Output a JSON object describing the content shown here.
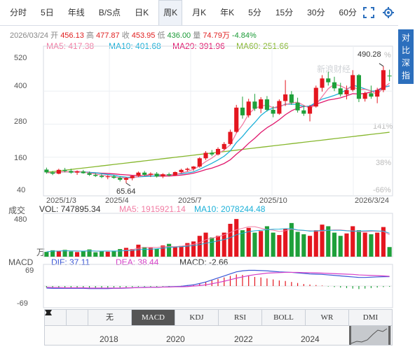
{
  "tabs": [
    {
      "label": "分时",
      "active": false
    },
    {
      "label": "5日",
      "active": false
    },
    {
      "label": "年线",
      "active": false
    },
    {
      "label": "B/S点",
      "active": false
    },
    {
      "label": "日K",
      "active": false
    },
    {
      "label": "周K",
      "active": true
    },
    {
      "label": "月K",
      "active": false
    },
    {
      "label": "年K",
      "active": false
    },
    {
      "label": "5分",
      "active": false
    },
    {
      "label": "15分",
      "active": false
    },
    {
      "label": "30分",
      "active": false
    },
    {
      "label": "60分",
      "active": false
    }
  ],
  "side_button": "对比深指",
  "info": {
    "date": "2026/03/24",
    "open_label": "开",
    "open": "456.13",
    "high_label": "高",
    "high": "477.87",
    "close_label": "收",
    "close": "453.95",
    "low_label": "低",
    "low": "436.00",
    "vol_label": "量",
    "vol": "74.79万",
    "chg": "-4.84%"
  },
  "ma": {
    "ma5": "MA5: 417.38",
    "ma10": "MA10: 401.68",
    "ma20": "MA20: 391.96",
    "ma60": "MA60: 251.66"
  },
  "price_axis": [
    "520",
    "400",
    "280",
    "160",
    "40"
  ],
  "pct_axis": [
    "141%",
    "38%",
    "-66%"
  ],
  "pct_top": "%",
  "annotations": {
    "max": "490.28",
    "min": "65.64"
  },
  "dates": [
    "2025/1/3",
    "2025/4",
    "2025/7",
    "2025/10",
    "2026/3/24"
  ],
  "volume": {
    "label": "成交",
    "vol": "VOL: 747895.34",
    "ma5": "MA5: 1915921.14",
    "ma10": "MA10: 2078244.48",
    "axis_top": "480",
    "unit": "万"
  },
  "macd": {
    "label": "MACD",
    "dif": "DIF: 37.11",
    "dea": "DEA: 38.44",
    "macd": "MACD: -2.66",
    "axis_top": "69",
    "axis_bottom": "-69"
  },
  "indicator_tabs": [
    "无",
    "MACD",
    "KDJ",
    "RSI",
    "BOLL",
    "WR",
    "DMI"
  ],
  "active_indicator": "MACD",
  "years": [
    "2018",
    "2020",
    "2022",
    "2024"
  ],
  "watermark": "新浪财经",
  "colors": {
    "up": "#e4161f",
    "down": "#1ea03a",
    "ma5": "#f17ca3",
    "ma10": "#1bb0d8",
    "ma20": "#e0186d",
    "ma60": "#86b72d",
    "dif": "#3b57d6",
    "dea": "#d640c8"
  },
  "chart_data": {
    "type": "candlestick",
    "ylim": [
      40,
      520
    ],
    "candles": [
      {
        "o": 115,
        "h": 122,
        "l": 100,
        "c": 105
      },
      {
        "o": 105,
        "h": 110,
        "l": 95,
        "c": 100
      },
      {
        "o": 100,
        "h": 118,
        "l": 98,
        "c": 114
      },
      {
        "o": 114,
        "h": 121,
        "l": 105,
        "c": 110
      },
      {
        "o": 110,
        "h": 118,
        "l": 100,
        "c": 104
      },
      {
        "o": 104,
        "h": 112,
        "l": 96,
        "c": 108
      },
      {
        "o": 108,
        "h": 114,
        "l": 100,
        "c": 102
      },
      {
        "o": 102,
        "h": 108,
        "l": 92,
        "c": 96
      },
      {
        "o": 96,
        "h": 102,
        "l": 88,
        "c": 92
      },
      {
        "o": 92,
        "h": 98,
        "l": 84,
        "c": 88
      },
      {
        "o": 88,
        "h": 95,
        "l": 80,
        "c": 90
      },
      {
        "o": 90,
        "h": 96,
        "l": 82,
        "c": 85
      },
      {
        "o": 85,
        "h": 90,
        "l": 72,
        "c": 78
      },
      {
        "o": 78,
        "h": 88,
        "l": 66,
        "c": 84
      },
      {
        "o": 84,
        "h": 94,
        "l": 76,
        "c": 92
      },
      {
        "o": 92,
        "h": 108,
        "l": 88,
        "c": 104
      },
      {
        "o": 104,
        "h": 110,
        "l": 92,
        "c": 96
      },
      {
        "o": 96,
        "h": 105,
        "l": 88,
        "c": 100
      },
      {
        "o": 100,
        "h": 106,
        "l": 86,
        "c": 90
      },
      {
        "o": 90,
        "h": 102,
        "l": 84,
        "c": 98
      },
      {
        "o": 98,
        "h": 104,
        "l": 90,
        "c": 94
      },
      {
        "o": 94,
        "h": 108,
        "l": 92,
        "c": 106
      },
      {
        "o": 106,
        "h": 118,
        "l": 102,
        "c": 114
      },
      {
        "o": 114,
        "h": 122,
        "l": 108,
        "c": 118
      },
      {
        "o": 118,
        "h": 128,
        "l": 110,
        "c": 126
      },
      {
        "o": 126,
        "h": 160,
        "l": 122,
        "c": 156
      },
      {
        "o": 156,
        "h": 182,
        "l": 150,
        "c": 176
      },
      {
        "o": 176,
        "h": 186,
        "l": 164,
        "c": 170
      },
      {
        "o": 170,
        "h": 196,
        "l": 166,
        "c": 190
      },
      {
        "o": 190,
        "h": 215,
        "l": 184,
        "c": 208
      },
      {
        "o": 208,
        "h": 260,
        "l": 204,
        "c": 252
      },
      {
        "o": 252,
        "h": 350,
        "l": 248,
        "c": 340
      },
      {
        "o": 340,
        "h": 380,
        "l": 300,
        "c": 312
      },
      {
        "o": 312,
        "h": 372,
        "l": 304,
        "c": 362
      },
      {
        "o": 362,
        "h": 390,
        "l": 328,
        "c": 336
      },
      {
        "o": 336,
        "h": 378,
        "l": 320,
        "c": 370
      },
      {
        "o": 370,
        "h": 382,
        "l": 326,
        "c": 332
      },
      {
        "o": 332,
        "h": 345,
        "l": 305,
        "c": 318
      },
      {
        "o": 318,
        "h": 370,
        "l": 314,
        "c": 364
      },
      {
        "o": 364,
        "h": 440,
        "l": 346,
        "c": 388
      },
      {
        "o": 388,
        "h": 400,
        "l": 350,
        "c": 358
      },
      {
        "o": 358,
        "h": 376,
        "l": 322,
        "c": 330
      },
      {
        "o": 330,
        "h": 348,
        "l": 310,
        "c": 318
      },
      {
        "o": 318,
        "h": 350,
        "l": 290,
        "c": 344
      },
      {
        "o": 344,
        "h": 420,
        "l": 340,
        "c": 412
      },
      {
        "o": 412,
        "h": 458,
        "l": 398,
        "c": 446
      },
      {
        "o": 446,
        "h": 470,
        "l": 420,
        "c": 432
      },
      {
        "o": 432,
        "h": 452,
        "l": 400,
        "c": 410
      },
      {
        "o": 410,
        "h": 430,
        "l": 380,
        "c": 388
      },
      {
        "o": 388,
        "h": 420,
        "l": 370,
        "c": 404
      },
      {
        "o": 404,
        "h": 476,
        "l": 398,
        "c": 458
      },
      {
        "o": 458,
        "h": 462,
        "l": 360,
        "c": 372
      },
      {
        "o": 372,
        "h": 398,
        "l": 362,
        "c": 392
      },
      {
        "o": 392,
        "h": 420,
        "l": 372,
        "c": 380
      },
      {
        "o": 380,
        "h": 412,
        "l": 356,
        "c": 404
      },
      {
        "o": 404,
        "h": 490.28,
        "l": 396,
        "c": 476
      },
      {
        "o": 456.13,
        "h": 477.87,
        "l": 436,
        "c": 453.95
      }
    ],
    "volume": [
      60,
      80,
      70,
      85,
      65,
      58,
      72,
      90,
      55,
      68,
      62,
      75,
      95,
      110,
      95,
      150,
      120,
      110,
      100,
      140,
      160,
      120,
      135,
      170,
      190,
      260,
      300,
      240,
      260,
      300,
      410,
      470,
      330,
      360,
      300,
      320,
      380,
      300,
      270,
      350,
      420,
      310,
      280,
      260,
      330,
      400,
      380,
      300,
      260,
      290,
      380,
      330,
      300,
      280,
      300,
      370,
      120
    ],
    "macd_hist": [
      -6,
      -7,
      -6,
      -6,
      -6,
      -6,
      -6,
      -7,
      -7,
      -7,
      -7,
      -6,
      -6,
      -5,
      -4,
      -3,
      -3,
      -3,
      -3,
      -2,
      -2,
      -1,
      1,
      3,
      6,
      10,
      16,
      22,
      28,
      34,
      40,
      46,
      44,
      40,
      36,
      34,
      30,
      26,
      22,
      20,
      16,
      12,
      8,
      6,
      4,
      2,
      -2,
      -4,
      -6,
      -8,
      -10,
      -12,
      -10,
      -8,
      -6,
      -4,
      -3
    ],
    "dif": [
      -8,
      -9,
      -9,
      -9,
      -9,
      -9,
      -9,
      -10,
      -10,
      -10,
      -10,
      -9,
      -9,
      -8,
      -7,
      -6,
      -5,
      -5,
      -5,
      -4,
      -3,
      -2,
      -1,
      2,
      5,
      10,
      16,
      24,
      32,
      40,
      48,
      56,
      60,
      62,
      62,
      61,
      60,
      58,
      56,
      55,
      54,
      52,
      50,
      48,
      47,
      46,
      44,
      42,
      40,
      38,
      36,
      34,
      34,
      35,
      36,
      37,
      37.11
    ],
    "dea": [
      -5,
      -6,
      -6,
      -7,
      -7,
      -7,
      -7,
      -8,
      -8,
      -8,
      -8,
      -8,
      -8,
      -7,
      -7,
      -6,
      -6,
      -5,
      -5,
      -4,
      -4,
      -3,
      -3,
      -2,
      0,
      2,
      5,
      9,
      14,
      19,
      25,
      31,
      36,
      41,
      45,
      48,
      51,
      52,
      53,
      54,
      54,
      54,
      53,
      53,
      52,
      51,
      50,
      49,
      48,
      47,
      46,
      44,
      43,
      42,
      41,
      40,
      38.44
    ]
  }
}
